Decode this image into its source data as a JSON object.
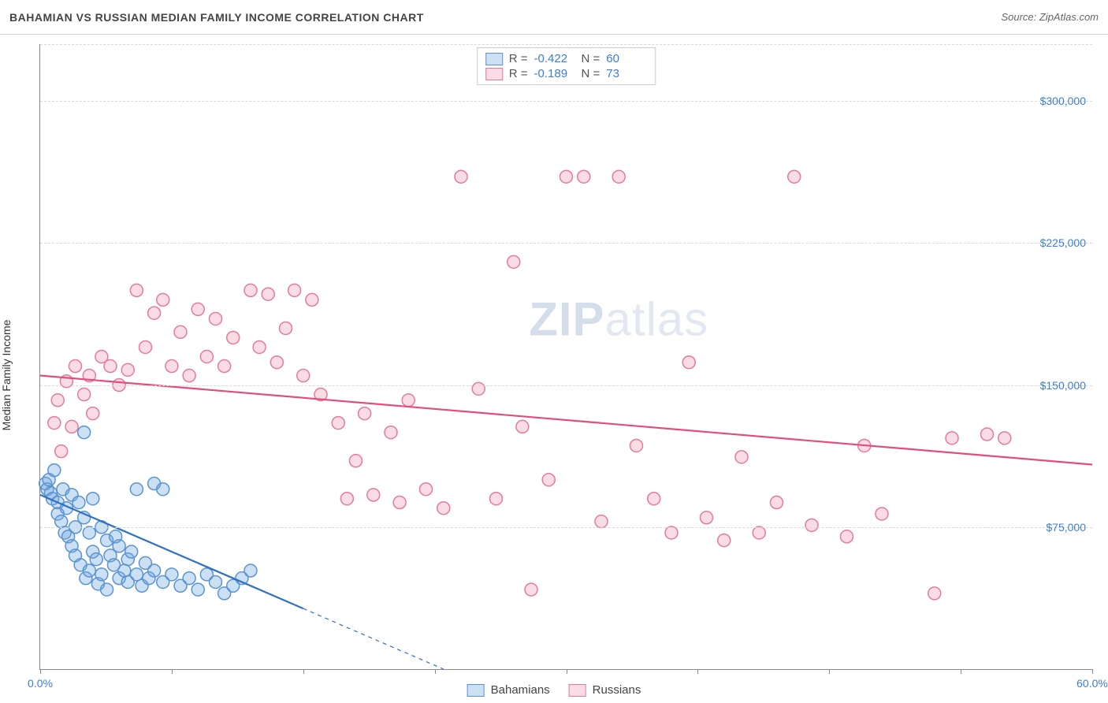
{
  "header": {
    "title": "BAHAMIAN VS RUSSIAN MEDIAN FAMILY INCOME CORRELATION CHART",
    "source": "Source: ZipAtlas.com"
  },
  "ylabel": "Median Family Income",
  "watermark_bold": "ZIP",
  "watermark_light": "atlas",
  "xlim": [
    0,
    60
  ],
  "ylim": [
    0,
    330000
  ],
  "xtick_positions": [
    0,
    7.5,
    15,
    22.5,
    30,
    37.5,
    45,
    52.5,
    60
  ],
  "xtick_labels": {
    "0": "0.0%",
    "60": "60.0%"
  },
  "ytick_positions": [
    75000,
    150000,
    225000,
    300000
  ],
  "ytick_labels": [
    "$75,000",
    "$150,000",
    "$225,000",
    "$300,000"
  ],
  "grid_color": "#d8d8d8",
  "axis_color": "#888888",
  "label_color": "#3b7dd8",
  "series": [
    {
      "name": "Bahamians",
      "fill": "rgba(109,165,224,0.35)",
      "stroke": "#5a93d0",
      "line_stroke": "#3071c4",
      "R": "-0.422",
      "N": "60",
      "trend": {
        "x1": 0,
        "y1": 92000,
        "x2": 23,
        "y2": 0,
        "dash_after_x": 15
      },
      "points": [
        [
          0.3,
          98000
        ],
        [
          0.4,
          95000
        ],
        [
          0.5,
          100000
        ],
        [
          0.6,
          93000
        ],
        [
          0.7,
          90000
        ],
        [
          0.8,
          105000
        ],
        [
          1.0,
          88000
        ],
        [
          1.0,
          82000
        ],
        [
          1.2,
          78000
        ],
        [
          1.3,
          95000
        ],
        [
          1.4,
          72000
        ],
        [
          1.5,
          85000
        ],
        [
          1.6,
          70000
        ],
        [
          1.8,
          92000
        ],
        [
          1.8,
          65000
        ],
        [
          2.0,
          75000
        ],
        [
          2.0,
          60000
        ],
        [
          2.2,
          88000
        ],
        [
          2.3,
          55000
        ],
        [
          2.5,
          80000
        ],
        [
          2.5,
          125000
        ],
        [
          2.6,
          48000
        ],
        [
          2.8,
          72000
        ],
        [
          2.8,
          52000
        ],
        [
          3.0,
          90000
        ],
        [
          3.0,
          62000
        ],
        [
          3.2,
          58000
        ],
        [
          3.3,
          45000
        ],
        [
          3.5,
          75000
        ],
        [
          3.5,
          50000
        ],
        [
          3.8,
          68000
        ],
        [
          3.8,
          42000
        ],
        [
          4.0,
          60000
        ],
        [
          4.2,
          55000
        ],
        [
          4.3,
          70000
        ],
        [
          4.5,
          48000
        ],
        [
          4.5,
          65000
        ],
        [
          4.8,
          52000
        ],
        [
          5.0,
          58000
        ],
        [
          5.0,
          46000
        ],
        [
          5.2,
          62000
        ],
        [
          5.5,
          50000
        ],
        [
          5.5,
          95000
        ],
        [
          5.8,
          44000
        ],
        [
          6.0,
          56000
        ],
        [
          6.2,
          48000
        ],
        [
          6.5,
          98000
        ],
        [
          6.5,
          52000
        ],
        [
          7.0,
          95000
        ],
        [
          7.0,
          46000
        ],
        [
          7.5,
          50000
        ],
        [
          8.0,
          44000
        ],
        [
          8.5,
          48000
        ],
        [
          9.0,
          42000
        ],
        [
          9.5,
          50000
        ],
        [
          10.0,
          46000
        ],
        [
          10.5,
          40000
        ],
        [
          11.0,
          44000
        ],
        [
          11.5,
          48000
        ],
        [
          12.0,
          52000
        ]
      ]
    },
    {
      "name": "Russians",
      "fill": "rgba(238,140,170,0.30)",
      "stroke": "#e57a9a",
      "line_stroke": "#e34d7e",
      "R": "-0.189",
      "N": "73",
      "trend": {
        "x1": 0,
        "y1": 155000,
        "x2": 60,
        "y2": 108000
      },
      "points": [
        [
          0.8,
          130000
        ],
        [
          1.0,
          142000
        ],
        [
          1.2,
          115000
        ],
        [
          1.5,
          152000
        ],
        [
          1.8,
          128000
        ],
        [
          2.0,
          160000
        ],
        [
          2.5,
          145000
        ],
        [
          2.8,
          155000
        ],
        [
          3.0,
          135000
        ],
        [
          3.5,
          165000
        ],
        [
          4.0,
          160000
        ],
        [
          4.5,
          150000
        ],
        [
          5.0,
          158000
        ],
        [
          5.5,
          200000
        ],
        [
          6.0,
          170000
        ],
        [
          6.5,
          188000
        ],
        [
          7.0,
          195000
        ],
        [
          7.5,
          160000
        ],
        [
          8.0,
          178000
        ],
        [
          8.5,
          155000
        ],
        [
          9.0,
          190000
        ],
        [
          9.5,
          165000
        ],
        [
          10.0,
          185000
        ],
        [
          10.5,
          160000
        ],
        [
          11.0,
          175000
        ],
        [
          12.0,
          200000
        ],
        [
          12.5,
          170000
        ],
        [
          13.0,
          198000
        ],
        [
          13.5,
          162000
        ],
        [
          14.0,
          180000
        ],
        [
          14.5,
          200000
        ],
        [
          15.0,
          155000
        ],
        [
          15.5,
          195000
        ],
        [
          16.0,
          145000
        ],
        [
          17.0,
          130000
        ],
        [
          17.5,
          90000
        ],
        [
          18.0,
          110000
        ],
        [
          18.5,
          135000
        ],
        [
          19.0,
          92000
        ],
        [
          20.0,
          125000
        ],
        [
          20.5,
          88000
        ],
        [
          21.0,
          142000
        ],
        [
          22.0,
          95000
        ],
        [
          23.0,
          85000
        ],
        [
          24.0,
          260000
        ],
        [
          25.0,
          148000
        ],
        [
          26.0,
          90000
        ],
        [
          27.0,
          215000
        ],
        [
          27.5,
          128000
        ],
        [
          28.0,
          42000
        ],
        [
          29.0,
          100000
        ],
        [
          30.0,
          260000
        ],
        [
          31.0,
          260000
        ],
        [
          32.0,
          78000
        ],
        [
          33.0,
          260000
        ],
        [
          34.0,
          118000
        ],
        [
          35.0,
          90000
        ],
        [
          36.0,
          72000
        ],
        [
          37.0,
          162000
        ],
        [
          38.0,
          80000
        ],
        [
          39.0,
          68000
        ],
        [
          40.0,
          112000
        ],
        [
          41.0,
          72000
        ],
        [
          42.0,
          88000
        ],
        [
          43.0,
          260000
        ],
        [
          44.0,
          76000
        ],
        [
          46.0,
          70000
        ],
        [
          47.0,
          118000
        ],
        [
          48.0,
          82000
        ],
        [
          51.0,
          40000
        ],
        [
          52.0,
          122000
        ],
        [
          54.0,
          124000
        ],
        [
          55.0,
          122000
        ]
      ]
    }
  ],
  "legend_bottom": [
    "Bahamians",
    "Russians"
  ],
  "marker_radius": 8,
  "marker_stroke_width": 1.5,
  "trend_line_width": 2.2
}
